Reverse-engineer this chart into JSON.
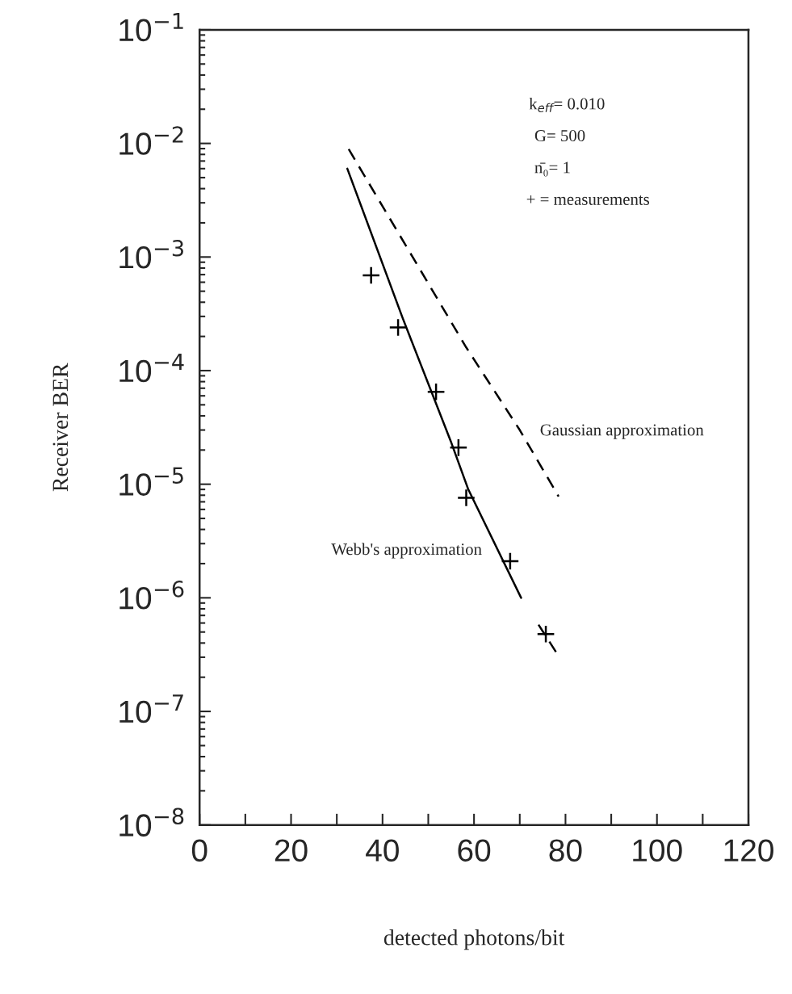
{
  "chart_data": {
    "type": "line",
    "xlabel": "detected photons/bit",
    "ylabel": "Receiver BER",
    "log": "y",
    "xlim": [
      0,
      120
    ],
    "ylim": [
      1e-08,
      0.1
    ],
    "xticks": [
      0,
      {
        "value": 10,
        "label": null
      },
      20,
      {
        "value": 30,
        "label": null
      },
      40,
      {
        "value": 50,
        "label": null
      },
      60,
      {
        "value": 70,
        "label": null
      },
      80,
      {
        "value": 90,
        "label": null
      },
      100,
      {
        "value": 110,
        "label": null
      },
      120
    ],
    "yticks": [
      {
        "value": 1e-08,
        "label": "10$^{−8}$"
      },
      {
        "value": 1e-07,
        "label": "10$^{−7}$"
      },
      {
        "value": 1e-06,
        "label": "10$^{−6}$"
      },
      {
        "value": 1e-05,
        "label": "10$^{−5}$"
      },
      {
        "value": 0.0001,
        "label": "10$^{−4}$"
      },
      {
        "value": 0.001,
        "label": "10$^{−3}$"
      },
      {
        "value": 0.01,
        "label": "10$^{−2}$"
      },
      {
        "value": 0.1,
        "label": "10$^{−1}$"
      }
    ],
    "grid": false,
    "legend": false,
    "series": [
      {
        "line_style": "solid",
        "color": "#000000",
        "x": [
          32.3,
          44.4,
          54.9,
          58.7,
          70.3
        ],
        "values": [
          0.006,
          0.00029,
          2.4e-05,
          9.1e-06,
          1e-06
        ]
      },
      {
        "line_style": "dashed",
        "color": "#000000",
        "x": [
          32.6,
          58.3,
          70.0,
          78.5
        ],
        "values": [
          0.0089,
          0.00016,
          3e-05,
          7.8e-06
        ]
      },
      {
        "line_style": "dashed",
        "color": "#000000",
        "x": [
          74.1,
          78.0
        ],
        "values": [
          5.8e-07,
          3.3e-07
        ]
      },
      {
        "type": "scatter",
        "marker": "cross",
        "color": "#000000",
        "x": [
          37.5,
          43.4,
          51.7,
          56.6,
          58.3,
          67.9,
          75.7
        ],
        "values": [
          0.00069,
          0.00024,
          6.5e-05,
          2.1e-05,
          7.6e-06,
          2.1e-06,
          4.8e-07
        ]
      }
    ],
    "annotations": [
      "k$_{eff}$= 0.010",
      "G= 500",
      "n̄₀= 1",
      "+ = measurements",
      "Gaussian approximation",
      "Webb's approximation"
    ]
  }
}
